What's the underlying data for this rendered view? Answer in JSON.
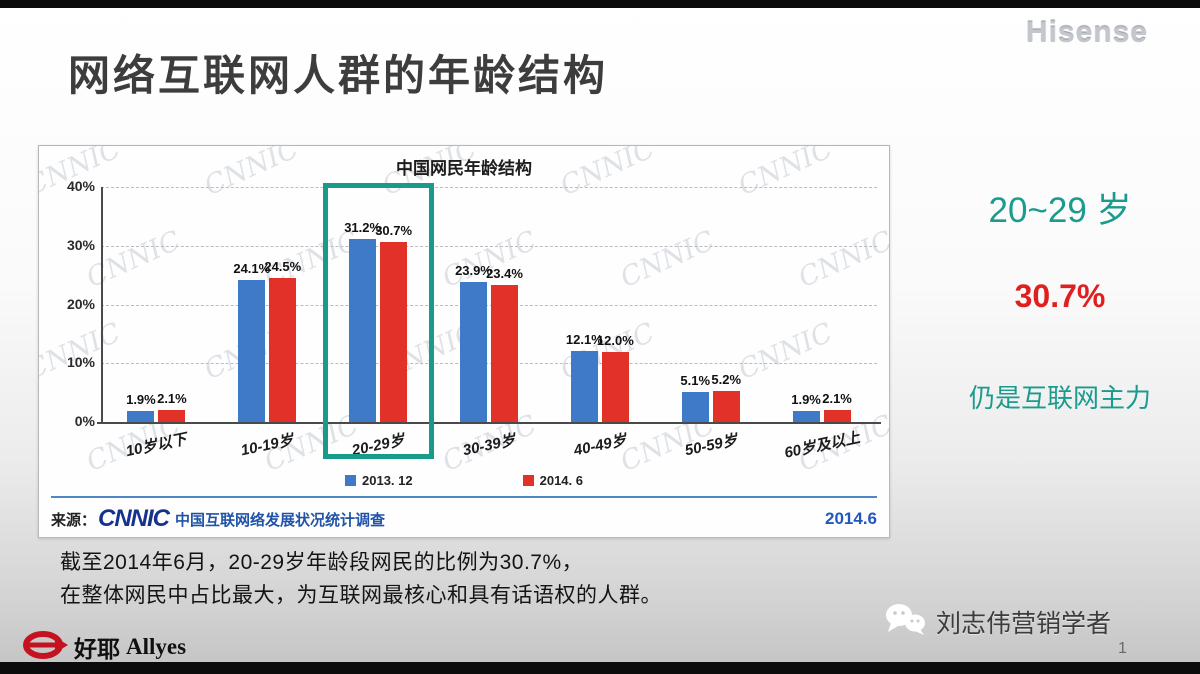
{
  "slide": {
    "title": "网络互联网人群的年龄结构",
    "brand": "Hisense",
    "caption_line1": "截至2014年6月，20-29岁年龄段网民的比例为30.7%，",
    "caption_line2": "在整体网民中占比最大，为互联网最核心和具有话语权的人群。",
    "page_number": "1"
  },
  "highlight_panel": {
    "age_range": "20~29 岁",
    "percent": "30.7%",
    "note": "仍是互联网主力",
    "teal": "#1a9b8d",
    "red": "#e01f1f"
  },
  "footer": {
    "logo_cn": "好耶",
    "logo_en": "Allyes",
    "wechat_name": "刘志伟营销学者"
  },
  "chart_data": {
    "type": "bar",
    "title": "中国网民年龄结构",
    "categories": [
      "10岁以下",
      "10-19岁",
      "20-29岁",
      "30-39岁",
      "40-49岁",
      "50-59岁",
      "60岁及以上"
    ],
    "series": [
      {
        "name": "2013. 12",
        "color": "#3e7ac8",
        "values": [
          1.9,
          24.1,
          31.2,
          23.9,
          12.1,
          5.1,
          1.9
        ]
      },
      {
        "name": "2014. 6",
        "color": "#e23128",
        "values": [
          2.1,
          24.5,
          30.7,
          23.4,
          12.0,
          5.2,
          2.1
        ]
      }
    ],
    "xlabel": "",
    "ylabel": "",
    "ylim": [
      0,
      40
    ],
    "yticks": [
      "40%",
      "30%",
      "20%",
      "10%",
      "0%"
    ],
    "grid": true,
    "legend_position": "bottom",
    "highlight_category": "20-29岁",
    "highlight_color": "#199a8b",
    "watermark": "CNNIC",
    "source_prefix": "来源：",
    "source_logo": "CNNIC",
    "source_text": "中国互联网络发展状况统计调查",
    "source_date": "2014.6"
  }
}
